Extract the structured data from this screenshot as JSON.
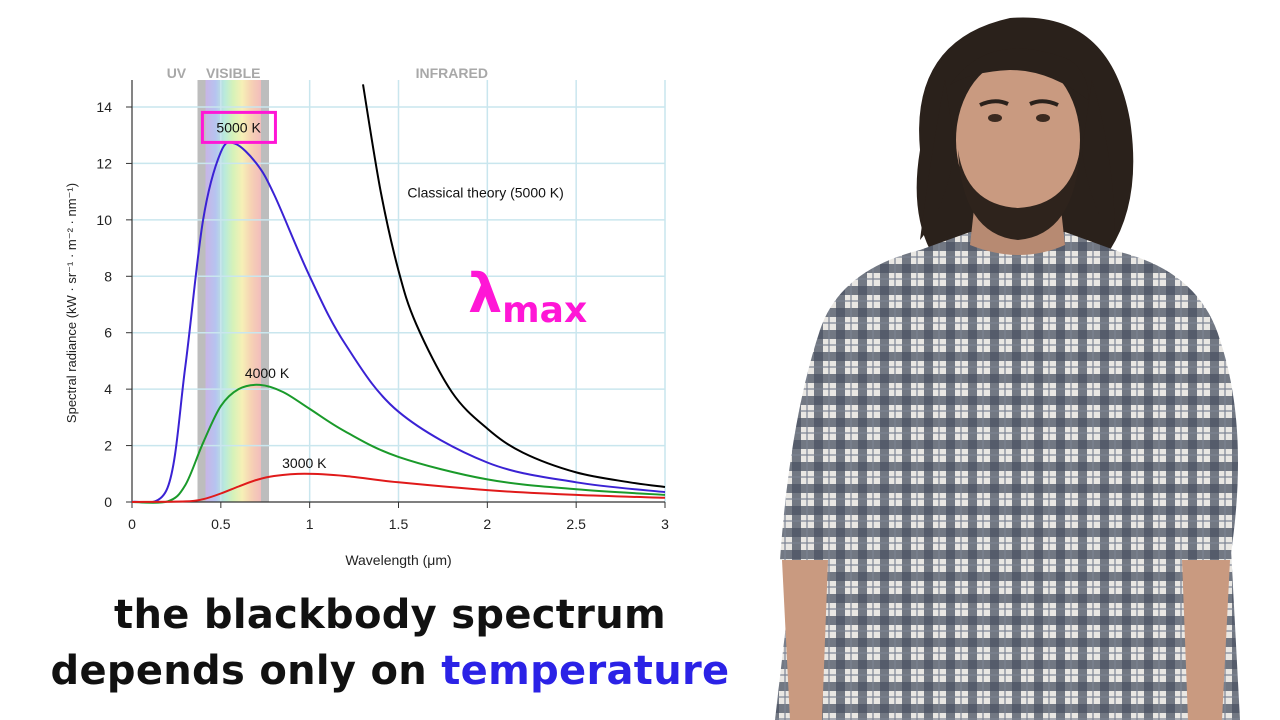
{
  "chart_data": {
    "type": "line",
    "xlabel": "Wavelength (μm)",
    "ylabel": "Spectral radiance (kW · sr⁻¹ · m⁻² · nm⁻¹)",
    "xlim": [
      0,
      3
    ],
    "ylim": [
      0,
      14
    ],
    "x_ticks": [
      "0",
      "0.5",
      "1",
      "1.5",
      "2",
      "2.5",
      "3"
    ],
    "y_ticks": [
      "0",
      "2",
      "4",
      "6",
      "8",
      "10",
      "12",
      "14"
    ],
    "grid": true,
    "regions": [
      {
        "label": "UV",
        "x_from": 0.2,
        "x_to": 0.38
      },
      {
        "label": "VISIBLE",
        "x_from": 0.38,
        "x_to": 0.76
      },
      {
        "label": "INFRARED",
        "x_from": 0.76,
        "x_to": 3
      }
    ],
    "series": [
      {
        "name": "5000 K",
        "temperature_k": 5000,
        "color": "#3a22d4",
        "x": [
          0.2,
          0.3,
          0.4,
          0.5,
          0.58,
          0.7,
          0.8,
          1.0,
          1.2,
          1.5,
          2.0,
          2.5,
          3.0
        ],
        "y": [
          0.5,
          4.8,
          10.0,
          12.4,
          12.7,
          12.0,
          10.9,
          8.0,
          5.6,
          3.2,
          1.4,
          0.7,
          0.35
        ]
      },
      {
        "name": "4000 K",
        "temperature_k": 4000,
        "color": "#1a9a2a",
        "x": [
          0.2,
          0.3,
          0.4,
          0.5,
          0.6,
          0.72,
          0.85,
          1.0,
          1.2,
          1.5,
          2.0,
          2.5,
          3.0
        ],
        "y": [
          0.02,
          0.6,
          2.1,
          3.4,
          4.0,
          4.15,
          3.9,
          3.3,
          2.5,
          1.6,
          0.8,
          0.45,
          0.25
        ]
      },
      {
        "name": "3000 K",
        "temperature_k": 3000,
        "color": "#e01a1a",
        "x": [
          0.3,
          0.4,
          0.5,
          0.6,
          0.7,
          0.8,
          0.97,
          1.2,
          1.5,
          2.0,
          2.5,
          3.0
        ],
        "y": [
          0.02,
          0.1,
          0.3,
          0.55,
          0.78,
          0.92,
          1.0,
          0.92,
          0.7,
          0.42,
          0.25,
          0.15
        ]
      },
      {
        "name": "Classical theory (5000 K)",
        "temperature_k": 5000,
        "color": "#000000",
        "x": [
          1.3,
          1.4,
          1.5,
          1.6,
          1.8,
          2.0,
          2.2,
          2.5,
          2.8,
          3.0
        ],
        "y": [
          14.8,
          11.0,
          8.2,
          6.3,
          3.9,
          2.6,
          1.75,
          1.05,
          0.7,
          0.53
        ]
      }
    ],
    "annotations": [
      {
        "text": "5000 K",
        "series": "5000 K",
        "highlighted": true,
        "highlight_color": "#ff16d6"
      },
      {
        "text": "4000 K",
        "series": "4000 K"
      },
      {
        "text": "3000 K",
        "series": "3000 K"
      },
      {
        "text": "Classical theory (5000 K)",
        "series": "Classical theory (5000 K)"
      }
    ]
  },
  "overlay": {
    "lambda_symbol": "λ",
    "lambda_subscript": "max",
    "lambda_color": "#ff16d6"
  },
  "caption": {
    "line1": "the blackbody spectrum",
    "line2_prefix": "depends only on ",
    "line2_highlight": "temperature",
    "highlight_color": "#2b22e6"
  },
  "presenter": {
    "shirt_colors": [
      "#3b4452",
      "#e8e6e2"
    ],
    "hair_color": "#2a211b",
    "skin_color": "#c99a80"
  }
}
